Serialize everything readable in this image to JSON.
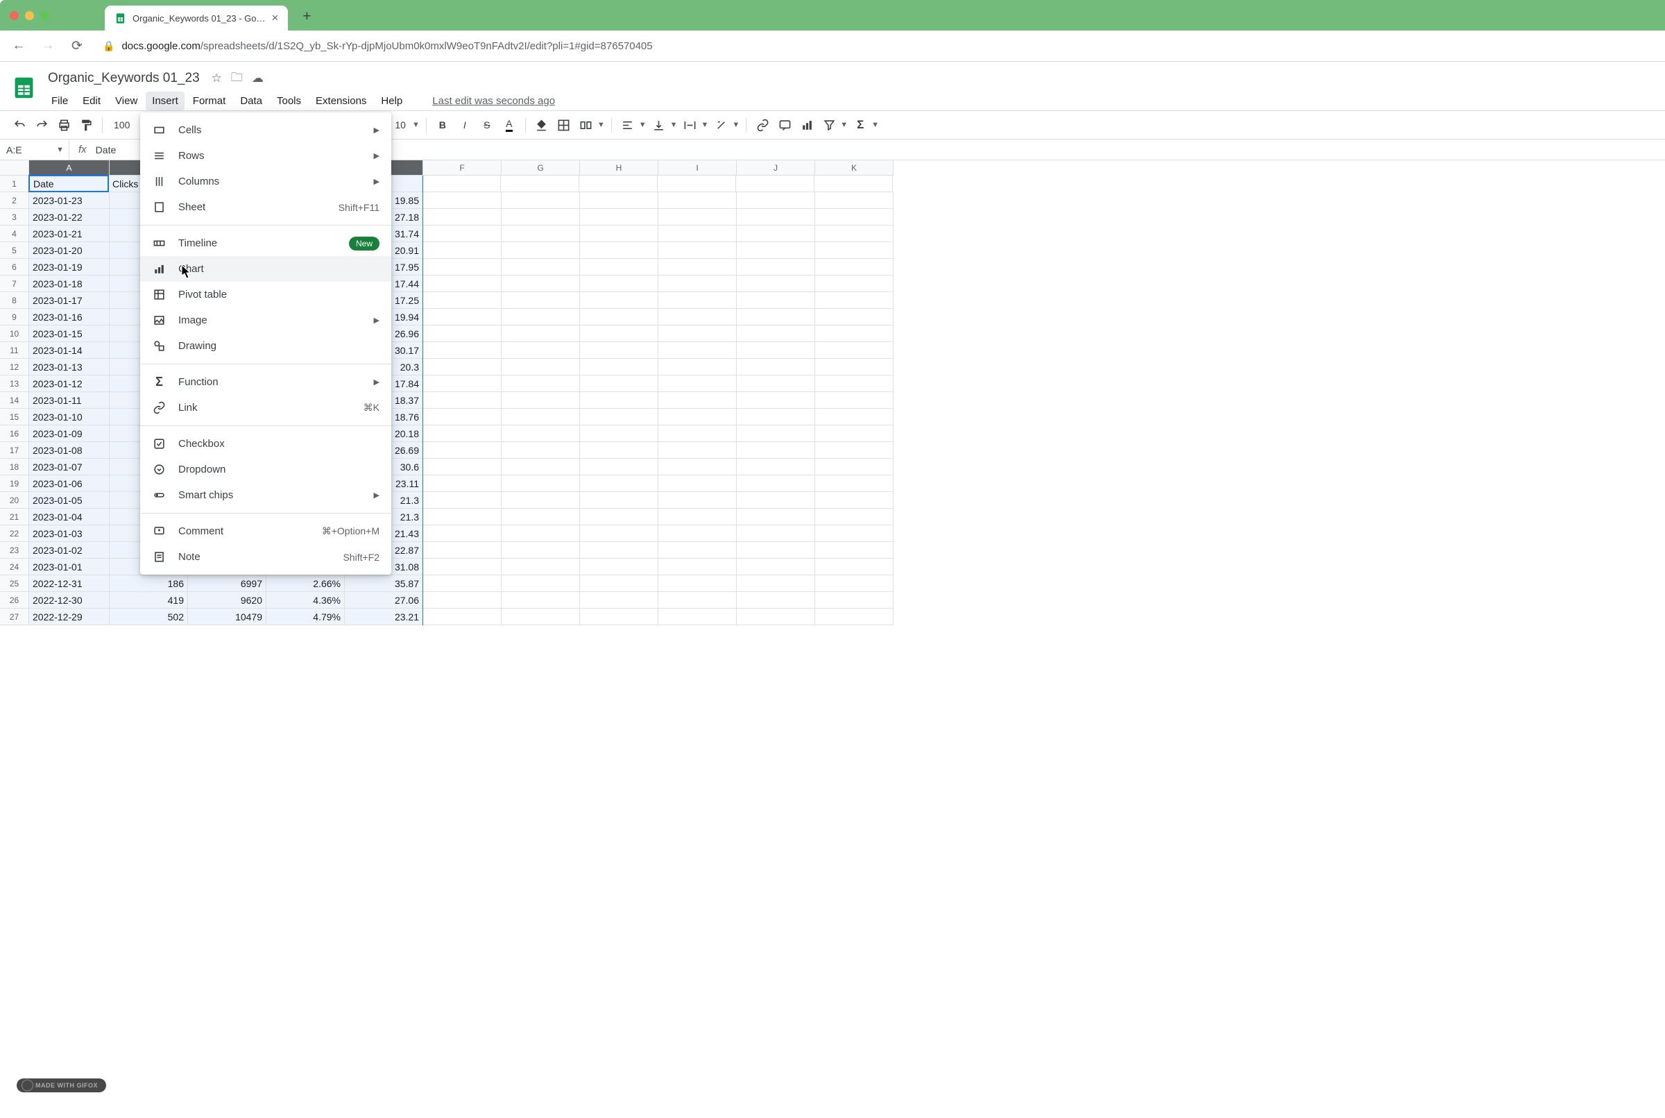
{
  "browser": {
    "tab_title": "Organic_Keywords 01_23 - Go…",
    "url_host": "docs.google.com",
    "url_path": "/spreadsheets/d/1S2Q_yb_Sk-rYp-djpMjoUbm0k0mxlW9eoT9nFAdtv2I/edit?pli=1#gid=876570405"
  },
  "doc": {
    "title": "Organic_Keywords 01_23",
    "last_edit": "Last edit was seconds ago"
  },
  "menubar": [
    "File",
    "Edit",
    "View",
    "Insert",
    "Format",
    "Data",
    "Tools",
    "Extensions",
    "Help"
  ],
  "menubar_active_index": 3,
  "toolbar": {
    "zoom": "100",
    "font_size": "10"
  },
  "namebox": "A:E",
  "fx_value": "Date",
  "columns": [
    {
      "letter": "A",
      "width": 116,
      "selected": true
    },
    {
      "letter": "B",
      "width": 113,
      "selected": true
    },
    {
      "letter": "C",
      "width": 113,
      "selected": true
    },
    {
      "letter": "D",
      "width": 113,
      "selected": true
    },
    {
      "letter": "E",
      "width": 113,
      "selected": true
    },
    {
      "letter": "F",
      "width": 113,
      "selected": false
    },
    {
      "letter": "G",
      "width": 113,
      "selected": false
    },
    {
      "letter": "H",
      "width": 113,
      "selected": false
    },
    {
      "letter": "I",
      "width": 113,
      "selected": false
    },
    {
      "letter": "J",
      "width": 113,
      "selected": false
    },
    {
      "letter": "K",
      "width": 113,
      "selected": false
    }
  ],
  "headers_row": [
    "Date",
    "Clicks",
    "",
    "",
    "",
    ""
  ],
  "rows": [
    {
      "n": 2,
      "A": "2023-01-23",
      "E": "19.85"
    },
    {
      "n": 3,
      "A": "2023-01-22",
      "E": "27.18"
    },
    {
      "n": 4,
      "A": "2023-01-21",
      "E": "31.74"
    },
    {
      "n": 5,
      "A": "2023-01-20",
      "E": "20.91"
    },
    {
      "n": 6,
      "A": "2023-01-19",
      "E": "17.95"
    },
    {
      "n": 7,
      "A": "2023-01-18",
      "E": "17.44"
    },
    {
      "n": 8,
      "A": "2023-01-17",
      "E": "17.25"
    },
    {
      "n": 9,
      "A": "2023-01-16",
      "E": "19.94"
    },
    {
      "n": 10,
      "A": "2023-01-15",
      "E": "26.96"
    },
    {
      "n": 11,
      "A": "2023-01-14",
      "E": "30.17"
    },
    {
      "n": 12,
      "A": "2023-01-13",
      "E": "20.3"
    },
    {
      "n": 13,
      "A": "2023-01-12",
      "E": "17.84"
    },
    {
      "n": 14,
      "A": "2023-01-11",
      "E": "18.37"
    },
    {
      "n": 15,
      "A": "2023-01-10",
      "E": "18.76"
    },
    {
      "n": 16,
      "A": "2023-01-09",
      "E": "20.18"
    },
    {
      "n": 17,
      "A": "2023-01-08",
      "E": "26.69"
    },
    {
      "n": 18,
      "A": "2023-01-07",
      "E": "30.6"
    },
    {
      "n": 19,
      "A": "2023-01-06",
      "E": "23.11"
    },
    {
      "n": 20,
      "A": "2023-01-05",
      "E": "21.3"
    },
    {
      "n": 21,
      "A": "2023-01-04",
      "E": "21.3"
    },
    {
      "n": 22,
      "A": "2023-01-03",
      "E": "21.43"
    },
    {
      "n": 23,
      "A": "2023-01-02",
      "E": "22.87"
    },
    {
      "n": 24,
      "A": "2023-01-01",
      "E": "31.08"
    },
    {
      "n": 25,
      "A": "2022-12-31",
      "B": "186",
      "C": "6997",
      "D": "2.66%",
      "E": "35.87"
    },
    {
      "n": 26,
      "A": "2022-12-30",
      "B": "419",
      "C": "9620",
      "D": "4.36%",
      "E": "27.06"
    },
    {
      "n": 27,
      "A": "2022-12-29",
      "B": "502",
      "C": "10479",
      "D": "4.79%",
      "E": "23.21"
    }
  ],
  "dropdown": {
    "groups": [
      [
        {
          "icon": "cells",
          "label": "Cells",
          "arrow": true
        },
        {
          "icon": "rows",
          "label": "Rows",
          "arrow": true
        },
        {
          "icon": "columns",
          "label": "Columns",
          "arrow": true
        },
        {
          "icon": "sheet",
          "label": "Sheet",
          "shortcut": "Shift+F11"
        }
      ],
      [
        {
          "icon": "timeline",
          "label": "Timeline",
          "badge": "New"
        },
        {
          "icon": "chart",
          "label": "Chart",
          "hover": true
        },
        {
          "icon": "pivot",
          "label": "Pivot table"
        },
        {
          "icon": "image",
          "label": "Image",
          "arrow": true
        },
        {
          "icon": "drawing",
          "label": "Drawing"
        }
      ],
      [
        {
          "icon": "function",
          "label": "Function",
          "arrow": true
        },
        {
          "icon": "link",
          "label": "Link",
          "shortcut": "⌘K"
        }
      ],
      [
        {
          "icon": "checkbox",
          "label": "Checkbox"
        },
        {
          "icon": "dropdown",
          "label": "Dropdown"
        },
        {
          "icon": "smartchips",
          "label": "Smart chips",
          "arrow": true
        }
      ],
      [
        {
          "icon": "comment",
          "label": "Comment",
          "shortcut": "⌘+Option+M"
        },
        {
          "icon": "note",
          "label": "Note",
          "shortcut": "Shift+F2"
        }
      ]
    ]
  },
  "watermark": "MADE WITH GIFOX"
}
